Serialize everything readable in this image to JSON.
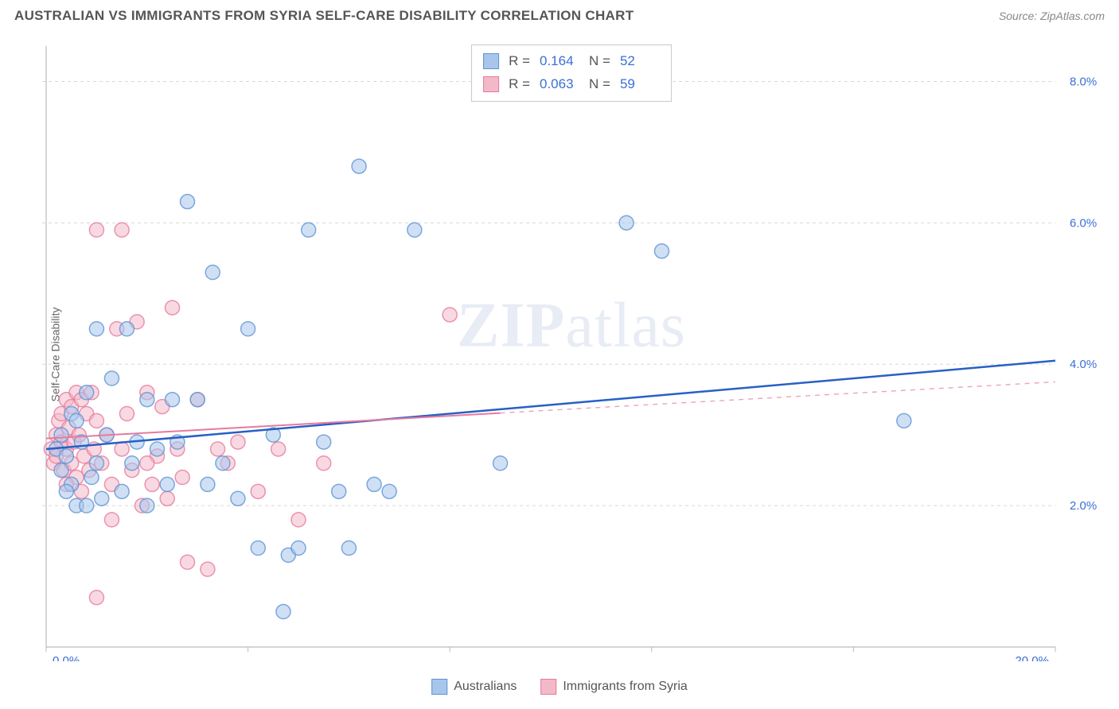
{
  "header": {
    "title": "AUSTRALIAN VS IMMIGRANTS FROM SYRIA SELF-CARE DISABILITY CORRELATION CHART",
    "source": "Source: ZipAtlas.com"
  },
  "ylabel": "Self-Care Disability",
  "watermark_zip": "ZIP",
  "watermark_atlas": "atlas",
  "chart": {
    "type": "scatter",
    "background_color": "#ffffff",
    "grid_color": "#d8d8d8",
    "xlim": [
      0,
      20
    ],
    "ylim": [
      0,
      8.5
    ],
    "xticks": [
      0,
      4,
      8,
      12,
      16,
      20
    ],
    "yticks": [
      2,
      4,
      6,
      8
    ],
    "xtick_labels": [
      "0.0%",
      "",
      "",
      "",
      "",
      "20.0%"
    ],
    "ytick_labels": [
      "2.0%",
      "4.0%",
      "6.0%",
      "8.0%"
    ],
    "xtick_label_color": "#3b6fd6",
    "ytick_label_color": "#3b6fd6",
    "tick_fontsize": 15,
    "marker_radius": 9,
    "marker_opacity": 0.55,
    "marker_stroke_width": 1.5,
    "series": [
      {
        "name": "Australians",
        "fill": "#a8c6ec",
        "stroke": "#5f93d6",
        "points": [
          [
            0.2,
            2.8
          ],
          [
            0.3,
            3.0
          ],
          [
            0.3,
            2.5
          ],
          [
            0.4,
            2.7
          ],
          [
            0.5,
            3.3
          ],
          [
            0.5,
            2.3
          ],
          [
            0.6,
            2.0
          ],
          [
            0.7,
            2.9
          ],
          [
            0.8,
            3.6
          ],
          [
            0.9,
            2.4
          ],
          [
            1.0,
            4.5
          ],
          [
            1.0,
            2.6
          ],
          [
            1.2,
            3.0
          ],
          [
            1.3,
            3.8
          ],
          [
            1.5,
            2.2
          ],
          [
            1.6,
            4.5
          ],
          [
            1.7,
            2.6
          ],
          [
            1.8,
            2.9
          ],
          [
            2.0,
            3.5
          ],
          [
            2.0,
            2.0
          ],
          [
            2.2,
            2.8
          ],
          [
            2.4,
            2.3
          ],
          [
            2.5,
            3.5
          ],
          [
            2.6,
            2.9
          ],
          [
            2.8,
            6.3
          ],
          [
            3.0,
            3.5
          ],
          [
            3.2,
            2.3
          ],
          [
            3.3,
            5.3
          ],
          [
            3.5,
            2.6
          ],
          [
            3.8,
            2.1
          ],
          [
            4.0,
            4.5
          ],
          [
            4.2,
            1.4
          ],
          [
            4.5,
            3.0
          ],
          [
            4.7,
            0.5
          ],
          [
            4.8,
            1.3
          ],
          [
            5.0,
            1.4
          ],
          [
            5.2,
            5.9
          ],
          [
            5.5,
            2.9
          ],
          [
            5.8,
            2.2
          ],
          [
            6.0,
            1.4
          ],
          [
            6.2,
            6.8
          ],
          [
            6.5,
            2.3
          ],
          [
            6.8,
            2.2
          ],
          [
            7.3,
            5.9
          ],
          [
            9.0,
            2.6
          ],
          [
            11.5,
            6.0
          ],
          [
            12.2,
            5.6
          ],
          [
            17.0,
            3.2
          ],
          [
            0.4,
            2.2
          ],
          [
            0.6,
            3.2
          ],
          [
            0.8,
            2.0
          ],
          [
            1.1,
            2.1
          ]
        ],
        "trend": {
          "x1": 0,
          "y1": 2.8,
          "x2": 20,
          "y2": 4.05,
          "color": "#2860c4",
          "width": 2.5,
          "solid_until_x": 20
        }
      },
      {
        "name": "Immigrants from Syria",
        "fill": "#f4b9c9",
        "stroke": "#e77a9e",
        "points": [
          [
            0.1,
            2.8
          ],
          [
            0.15,
            2.6
          ],
          [
            0.2,
            3.0
          ],
          [
            0.2,
            2.7
          ],
          [
            0.25,
            3.2
          ],
          [
            0.3,
            2.9
          ],
          [
            0.3,
            3.3
          ],
          [
            0.35,
            2.5
          ],
          [
            0.4,
            3.5
          ],
          [
            0.4,
            2.8
          ],
          [
            0.45,
            3.1
          ],
          [
            0.5,
            2.6
          ],
          [
            0.5,
            3.4
          ],
          [
            0.55,
            2.9
          ],
          [
            0.6,
            3.6
          ],
          [
            0.6,
            2.4
          ],
          [
            0.65,
            3.0
          ],
          [
            0.7,
            3.5
          ],
          [
            0.75,
            2.7
          ],
          [
            0.8,
            3.3
          ],
          [
            0.85,
            2.5
          ],
          [
            0.9,
            3.6
          ],
          [
            0.95,
            2.8
          ],
          [
            1.0,
            5.9
          ],
          [
            1.0,
            3.2
          ],
          [
            1.1,
            2.6
          ],
          [
            1.2,
            3.0
          ],
          [
            1.3,
            2.3
          ],
          [
            1.4,
            4.5
          ],
          [
            1.5,
            5.9
          ],
          [
            1.5,
            2.8
          ],
          [
            1.6,
            3.3
          ],
          [
            1.7,
            2.5
          ],
          [
            1.8,
            4.6
          ],
          [
            1.9,
            2.0
          ],
          [
            2.0,
            3.6
          ],
          [
            2.1,
            2.3
          ],
          [
            2.2,
            2.7
          ],
          [
            2.3,
            3.4
          ],
          [
            2.4,
            2.1
          ],
          [
            2.5,
            4.8
          ],
          [
            2.6,
            2.8
          ],
          [
            2.7,
            2.4
          ],
          [
            2.8,
            1.2
          ],
          [
            3.0,
            3.5
          ],
          [
            3.2,
            1.1
          ],
          [
            3.4,
            2.8
          ],
          [
            3.6,
            2.6
          ],
          [
            3.8,
            2.9
          ],
          [
            4.2,
            2.2
          ],
          [
            4.6,
            2.8
          ],
          [
            5.0,
            1.8
          ],
          [
            5.5,
            2.6
          ],
          [
            1.0,
            0.7
          ],
          [
            1.3,
            1.8
          ],
          [
            0.7,
            2.2
          ],
          [
            0.4,
            2.3
          ],
          [
            8.0,
            4.7
          ],
          [
            2.0,
            2.6
          ]
        ],
        "trend": {
          "x1": 0,
          "y1": 2.95,
          "x2": 20,
          "y2": 3.75,
          "color": "#e77a9e",
          "width": 2,
          "solid_until_x": 9
        }
      }
    ]
  },
  "legend_top": {
    "rows": [
      {
        "swatch_fill": "#a8c6ec",
        "swatch_stroke": "#5f93d6",
        "r_label": "R =",
        "r": "0.164",
        "n_label": "N =",
        "n": "52"
      },
      {
        "swatch_fill": "#f4b9c9",
        "swatch_stroke": "#e77a9e",
        "r_label": "R =",
        "r": "0.063",
        "n_label": "N =",
        "n": "59"
      }
    ]
  },
  "legend_bottom": {
    "items": [
      {
        "swatch_fill": "#a8c6ec",
        "swatch_stroke": "#5f93d6",
        "label": "Australians"
      },
      {
        "swatch_fill": "#f4b9c9",
        "swatch_stroke": "#e77a9e",
        "label": "Immigrants from Syria"
      }
    ]
  }
}
